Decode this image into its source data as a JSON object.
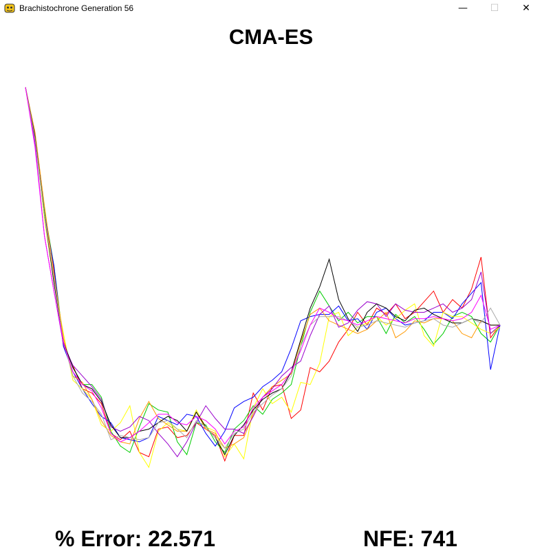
{
  "window": {
    "title": "Brachistochrone Generation 56",
    "controls": {
      "minimize": "—",
      "maximize": "☐",
      "close": "✕"
    }
  },
  "heading": "CMA-ES",
  "stats": {
    "error_label": "% Error:",
    "error_value": "22.571",
    "nfe_label": "NFE:",
    "nfe_value": "741"
  },
  "colors": {
    "series": [
      "#ff0000",
      "#00cc00",
      "#0000ff",
      "#ffff00",
      "#ff9900",
      "#9900cc",
      "#000000",
      "#aaaaaa",
      "#ff00ff"
    ]
  },
  "chart_data": {
    "type": "line",
    "title": "",
    "xlabel": "",
    "ylabel": "",
    "grid": false,
    "legend": "none",
    "x": [
      0,
      1,
      2,
      3,
      4,
      5,
      6,
      7,
      8,
      9,
      10,
      11,
      12,
      13,
      14,
      15,
      16,
      17,
      18,
      19,
      20,
      21,
      22,
      23,
      24,
      25,
      26,
      27,
      28,
      29,
      30,
      31,
      32,
      33,
      34,
      35,
      36,
      37,
      38,
      39,
      40,
      41,
      42,
      43,
      44,
      45,
      46,
      47,
      48,
      49,
      50
    ],
    "xlim": [
      0,
      50
    ],
    "ylim": [
      0,
      1000
    ],
    "series": [
      {
        "color": "#ff0000",
        "values": [
          1000,
          890,
          700,
          570,
          390,
          345,
          290,
          280,
          255,
          185,
          170,
          190,
          140,
          130,
          195,
          200,
          175,
          180,
          210,
          195,
          180,
          120,
          180,
          180,
          280,
          240,
          295,
          300,
          220,
          240,
          340,
          330,
          355,
          400,
          430,
          470,
          440,
          480,
          465,
          490,
          455,
          470,
          495,
          520,
          470,
          500,
          480,
          525,
          600,
          410,
          440
        ]
      },
      {
        "color": "#00cc00",
        "values": [
          1000,
          880,
          710,
          580,
          400,
          340,
          300,
          300,
          270,
          190,
          155,
          140,
          200,
          255,
          240,
          235,
          165,
          135,
          210,
          205,
          165,
          140,
          195,
          215,
          250,
          230,
          265,
          280,
          300,
          390,
          470,
          520,
          485,
          450,
          470,
          445,
          460,
          460,
          420,
          465,
          445,
          460,
          430,
          395,
          420,
          460,
          470,
          460,
          420,
          400,
          440
        ]
      },
      {
        "color": "#0000ff",
        "values": [
          1000,
          890,
          700,
          580,
          390,
          330,
          290,
          255,
          225,
          210,
          175,
          170,
          165,
          175,
          225,
          215,
          205,
          230,
          225,
          185,
          155,
          190,
          245,
          260,
          270,
          295,
          310,
          330,
          385,
          450,
          460,
          465,
          465,
          485,
          450,
          455,
          430,
          470,
          480,
          455,
          440,
          445,
          450,
          470,
          470,
          455,
          490,
          515,
          540,
          335,
          440
        ]
      },
      {
        "color": "#ffff00",
        "values": [
          1000,
          885,
          690,
          540,
          420,
          310,
          290,
          265,
          205,
          190,
          210,
          250,
          140,
          105,
          190,
          210,
          195,
          190,
          240,
          200,
          190,
          130,
          160,
          125,
          245,
          290,
          255,
          270,
          235,
          305,
          300,
          350,
          460,
          470,
          415,
          435,
          445,
          460,
          440,
          455,
          475,
          490,
          415,
          390,
          470,
          460,
          460,
          445,
          430,
          420,
          435
        ]
      },
      {
        "color": "#ff9900",
        "values": [
          1000,
          895,
          720,
          560,
          410,
          320,
          305,
          265,
          215,
          180,
          165,
          160,
          220,
          260,
          220,
          205,
          190,
          190,
          235,
          195,
          185,
          150,
          160,
          175,
          230,
          270,
          295,
          310,
          325,
          400,
          465,
          480,
          450,
          440,
          430,
          420,
          430,
          450,
          470,
          410,
          425,
          450,
          445,
          455,
          455,
          450,
          420,
          410,
          450,
          440,
          440
        ]
      },
      {
        "color": "#9900cc",
        "values": [
          1000,
          870,
          650,
          520,
          395,
          345,
          320,
          295,
          265,
          200,
          190,
          200,
          225,
          215,
          185,
          160,
          130,
          165,
          210,
          250,
          220,
          195,
          195,
          185,
          225,
          270,
          290,
          320,
          340,
          355,
          415,
          465,
          485,
          435,
          445,
          475,
          495,
          490,
          460,
          490,
          475,
          470,
          470,
          480,
          490,
          470,
          480,
          500,
          565,
          420,
          440
        ]
      },
      {
        "color": "#000000",
        "values": [
          1000,
          885,
          700,
          540,
          400,
          340,
          300,
          290,
          260,
          205,
          175,
          175,
          190,
          195,
          210,
          225,
          215,
          190,
          235,
          200,
          175,
          135,
          180,
          205,
          240,
          265,
          280,
          290,
          330,
          405,
          480,
          530,
          595,
          500,
          455,
          425,
          470,
          490,
          480,
          460,
          450,
          475,
          480,
          465,
          455,
          445,
          445,
          455,
          450,
          440,
          440
        ]
      },
      {
        "color": "#aaaaaa",
        "values": [
          1000,
          880,
          700,
          550,
          400,
          320,
          280,
          260,
          230,
          170,
          180,
          175,
          170,
          175,
          210,
          215,
          195,
          175,
          215,
          200,
          175,
          150,
          185,
          195,
          235,
          255,
          275,
          290,
          320,
          390,
          440,
          460,
          460,
          460,
          450,
          435,
          440,
          450,
          445,
          440,
          435,
          445,
          450,
          455,
          440,
          435,
          445,
          455,
          445,
          480,
          440
        ]
      },
      {
        "color": "#ff00ff",
        "values": [
          1000,
          860,
          650,
          520,
          400,
          330,
          300,
          285,
          245,
          185,
          165,
          175,
          190,
          210,
          230,
          230,
          210,
          205,
          225,
          215,
          195,
          160,
          190,
          200,
          245,
          270,
          285,
          300,
          330,
          380,
          440,
          480,
          470,
          455,
          450,
          440,
          450,
          460,
          455,
          450,
          445,
          455,
          455,
          460,
          455,
          450,
          455,
          470,
          510,
          430,
          440
        ]
      }
    ]
  }
}
